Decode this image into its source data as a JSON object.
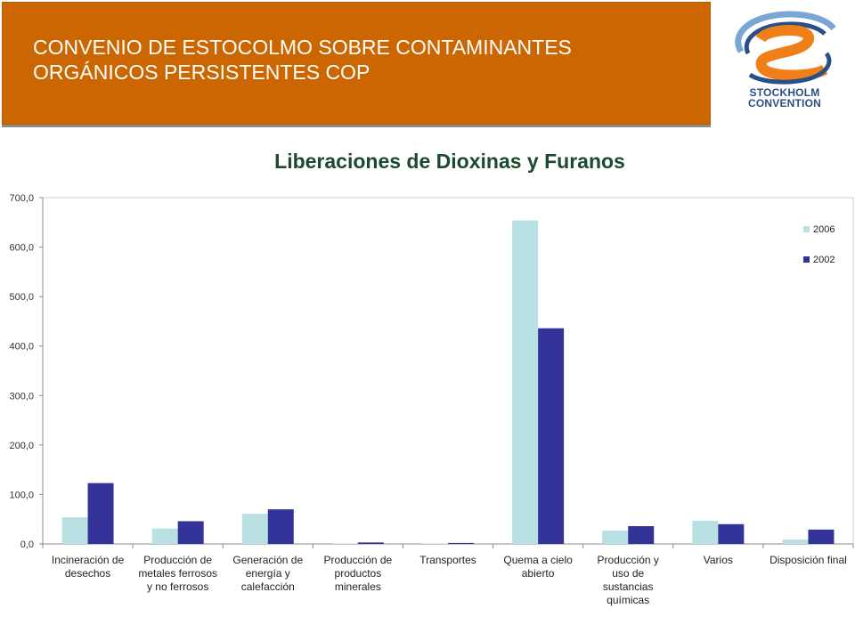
{
  "header": {
    "title_line1": "CONVENIO DE ESTOCOLMO SOBRE CONTAMINANTES",
    "title_line2": "ORGÁNICOS PERSISTENTES COP",
    "band_color": "#cc6600",
    "logo_line1": "STOCKHOLM",
    "logo_line2": "CONVENTION"
  },
  "chart_data": {
    "type": "bar",
    "title": "Liberaciones de Dioxinas y Furanos",
    "xlabel": "",
    "ylabel": "",
    "ylim": [
      0,
      700
    ],
    "yticks": [
      "0,0",
      "100,0",
      "200,0",
      "300,0",
      "400,0",
      "500,0",
      "600,0",
      "700,0"
    ],
    "categories": [
      [
        "Incineración de",
        "desechos"
      ],
      [
        "Producción de",
        "metales ferrosos",
        "y no ferrosos"
      ],
      [
        "Generación de",
        "energía y",
        "calefacción"
      ],
      [
        "Producción de",
        "productos",
        "minerales"
      ],
      [
        "Transportes"
      ],
      [
        "Quema a cielo",
        "abierto"
      ],
      [
        "Producción y",
        "uso de",
        "sustancias",
        "químicas"
      ],
      [
        "Varios"
      ],
      [
        "Disposición final"
      ]
    ],
    "series": [
      {
        "name": "2006",
        "color": "#b9e0e3",
        "values": [
          54,
          31,
          61,
          1,
          1,
          654,
          27,
          47,
          9
        ]
      },
      {
        "name": "2002",
        "color": "#333399",
        "values": [
          123,
          46,
          70,
          3,
          2,
          436,
          36,
          40,
          29
        ]
      }
    ],
    "legend_position": "top-right",
    "grid": false
  }
}
